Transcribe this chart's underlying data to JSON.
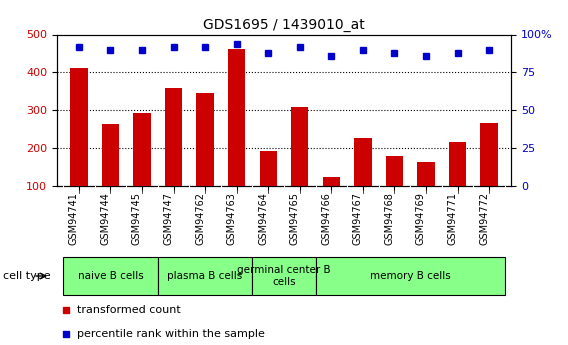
{
  "title": "GDS1695 / 1439010_at",
  "samples": [
    "GSM94741",
    "GSM94744",
    "GSM94745",
    "GSM94747",
    "GSM94762",
    "GSM94763",
    "GSM94764",
    "GSM94765",
    "GSM94766",
    "GSM94767",
    "GSM94768",
    "GSM94769",
    "GSM94771",
    "GSM94772"
  ],
  "bar_values": [
    413,
    265,
    292,
    360,
    345,
    462,
    194,
    308,
    125,
    228,
    181,
    165,
    218,
    268
  ],
  "dot_values": [
    92,
    90,
    90,
    92,
    92,
    94,
    88,
    92,
    86,
    90,
    88,
    86,
    88,
    90
  ],
  "bar_color": "#cc0000",
  "dot_color": "#0000cc",
  "ylim_left": [
    100,
    500
  ],
  "ylim_right": [
    0,
    100
  ],
  "yticks_left": [
    100,
    200,
    300,
    400,
    500
  ],
  "yticks_right": [
    0,
    25,
    50,
    75,
    100
  ],
  "ytick_labels_right": [
    "0",
    "25",
    "50",
    "75",
    "100%"
  ],
  "cell_group_labels": [
    "naive B cells",
    "plasma B cells",
    "germinal center B\ncells",
    "memory B cells"
  ],
  "cell_group_starts": [
    0,
    3,
    6,
    8
  ],
  "cell_group_ends": [
    3,
    6,
    8,
    14
  ],
  "cell_group_color": "#88ff88",
  "xlabel": "cell type",
  "legend_bar_label": "transformed count",
  "legend_dot_label": "percentile rank within the sample",
  "background_color": "#ffffff",
  "bar_color_dark": "#cc0000",
  "title_fontsize": 10,
  "tick_fontsize": 8,
  "label_fontsize": 8,
  "xticklabel_fontsize": 7,
  "tick_label_color_left": "#cc0000",
  "tick_label_color_right": "#0000cc"
}
